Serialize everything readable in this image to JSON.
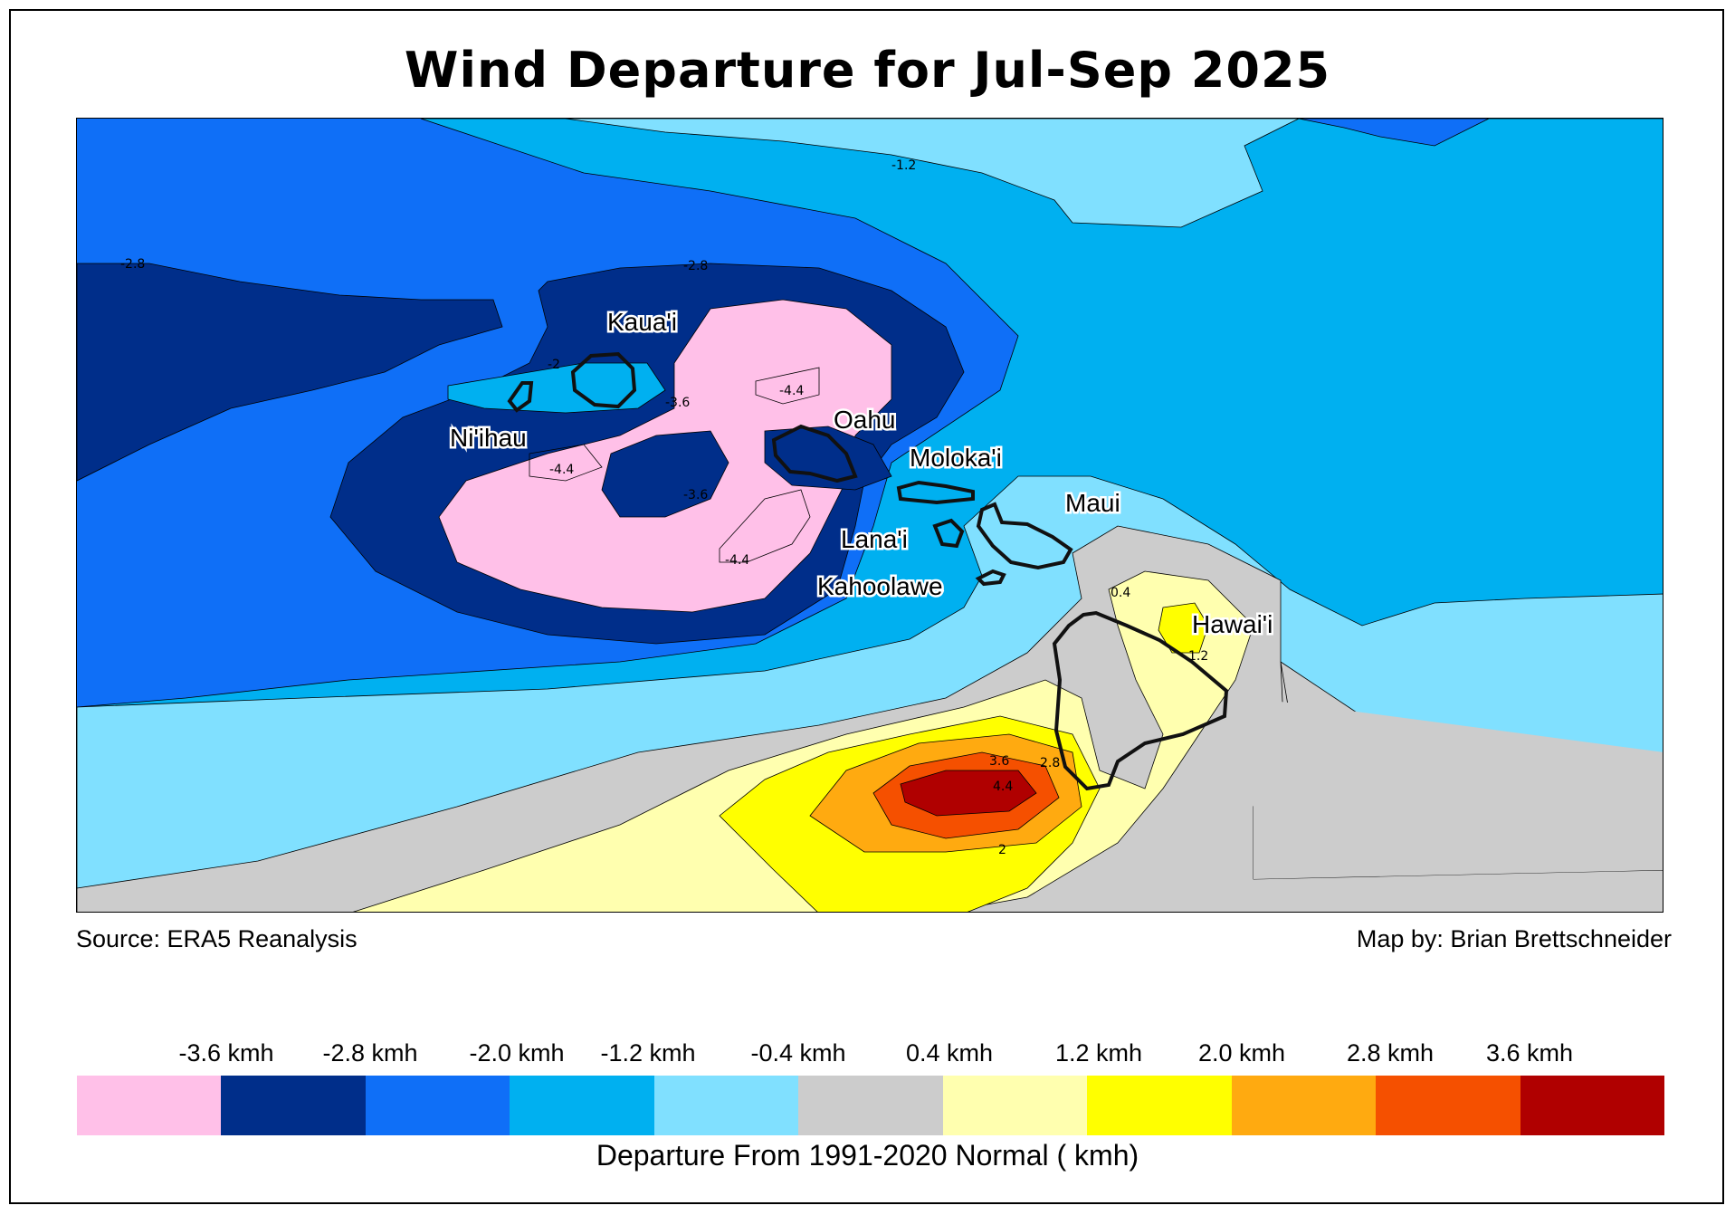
{
  "title": "Wind Departure for Jul-Sep 2025",
  "source": "Source: ERA5 Reanalysis",
  "credit": "Map by: Brian Brettschneider",
  "places": {
    "kauai": "Kaua'i",
    "niihau": "Ni'ihau",
    "oahu": "Oahu",
    "molokai": "Moloka'i",
    "maui": "Maui",
    "lanai": "Lana'i",
    "kahoolawe": "Kahoolawe",
    "hawaii": "Hawai'i"
  },
  "contour_labels": {
    "c1": "-1.2",
    "c2": "-2.8",
    "c3": "-2.8",
    "c4": "-2",
    "c5": "-3.6",
    "c6": "-4.4",
    "c7": "-4.4",
    "c8": "-3.6",
    "c9": "-4.4",
    "c10": "0.4",
    "c11": "1.2",
    "c12": "3.6",
    "c13": "2.8",
    "c14": "4.4",
    "c15": "2"
  },
  "legend": {
    "title": "Departure From 1991-2020 Normal ( kmh)",
    "ticks": [
      "-3.6 kmh",
      "-2.8 kmh",
      "-2.0 kmh",
      "-1.2 kmh",
      "-0.4 kmh",
      "0.4 kmh",
      "1.2 kmh",
      "2.0 kmh",
      "2.8 kmh",
      "3.6 kmh"
    ],
    "colors": [
      "#ffc0e8",
      "#002e8a",
      "#0f6ff7",
      "#00b0f0",
      "#80e0ff",
      "#cccccc",
      "#ffffaf",
      "#ffff00",
      "#ffaa10",
      "#f55000",
      "#b00000"
    ]
  }
}
